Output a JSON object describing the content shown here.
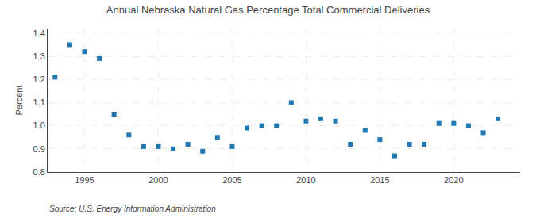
{
  "chart_data": {
    "type": "scatter",
    "title": "Annual Nebraska Natural Gas Percentage Total Commercial Deliveries",
    "ylabel": "Percent",
    "annotations": [
      "Source: U.S. Energy Information Administration"
    ],
    "x": [
      1993,
      1994,
      1995,
      1996,
      1997,
      1998,
      1999,
      2000,
      2001,
      2002,
      2003,
      2004,
      2005,
      2006,
      2007,
      2008,
      2009,
      2010,
      2011,
      2012,
      2013,
      2014,
      2015,
      2016,
      2017,
      2018,
      2019,
      2020,
      2021,
      2022,
      2023
    ],
    "values": [
      1.21,
      1.35,
      1.32,
      1.29,
      1.05,
      0.96,
      0.91,
      0.91,
      0.9,
      0.92,
      0.89,
      0.95,
      0.91,
      0.99,
      1.0,
      1.0,
      1.1,
      1.02,
      1.03,
      1.02,
      0.92,
      0.98,
      0.94,
      0.87,
      0.92,
      0.92,
      1.01,
      1.01,
      1.0,
      0.97,
      1.03
    ],
    "xlim": [
      1992.5,
      2024.5
    ],
    "ylim": [
      0.8,
      1.42
    ],
    "xticks": [
      1995,
      2000,
      2005,
      2010,
      2015,
      2020
    ],
    "yticks": [
      0.8,
      0.9,
      {
        "value": 1.0,
        "label": "1.0"
      },
      1.1,
      1.2,
      1.3,
      1.4
    ],
    "marker": "square",
    "grid": true
  }
}
